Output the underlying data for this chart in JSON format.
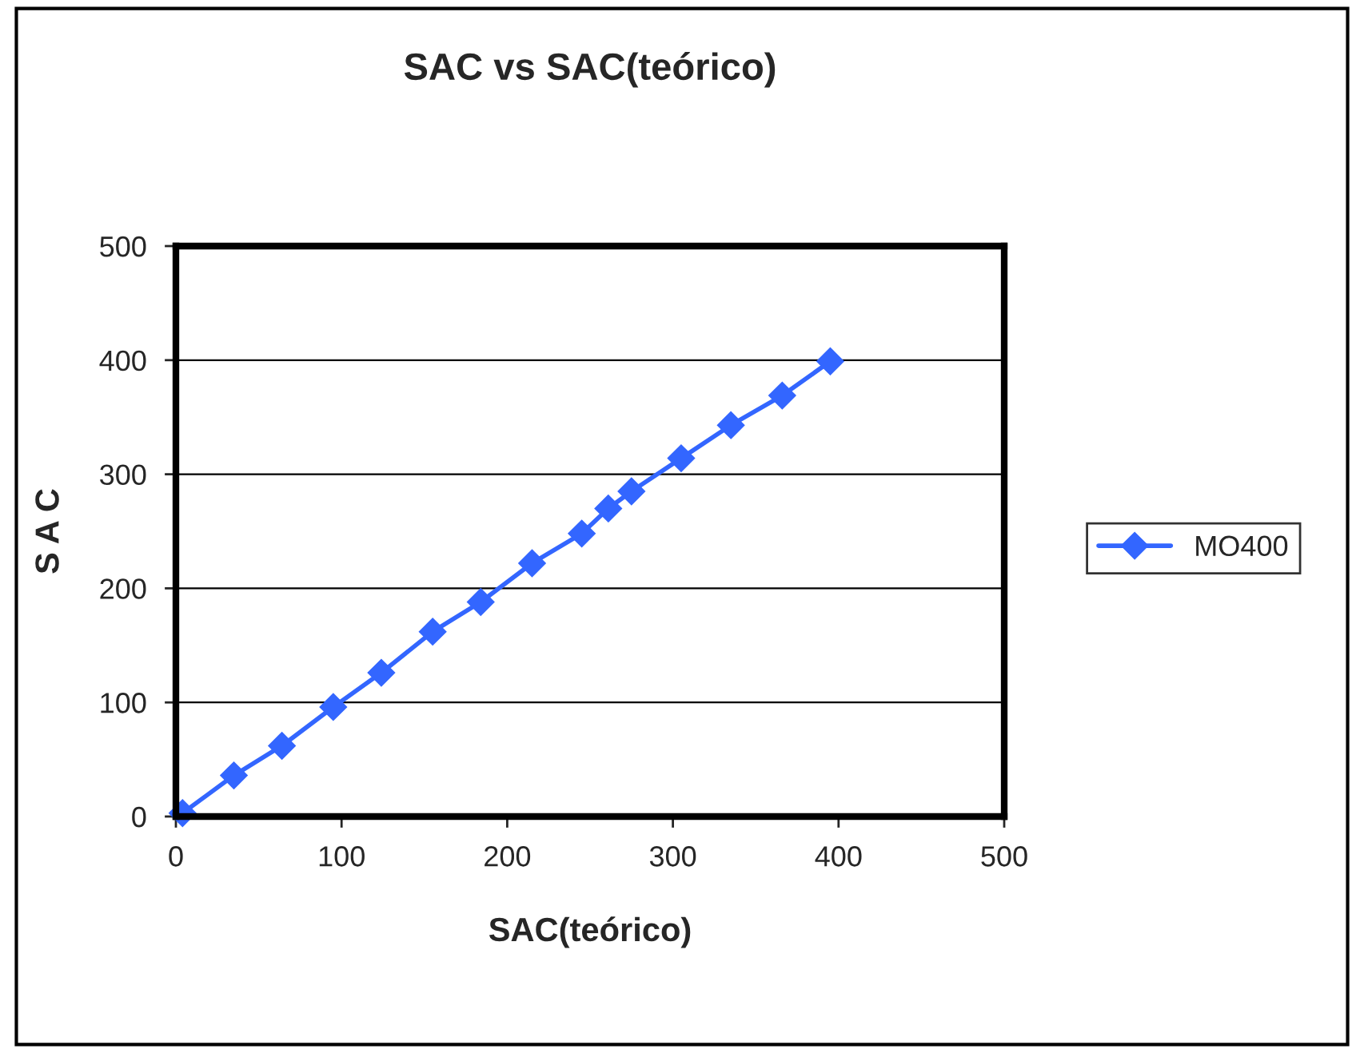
{
  "chart_data": {
    "type": "line",
    "title": "SAC vs SAC(teórico)",
    "xlabel": "SAC(teórico)",
    "ylabel": "S A C",
    "x": [
      4,
      35,
      64,
      95,
      124,
      155,
      184,
      215,
      245,
      261,
      275,
      305,
      335,
      366,
      395
    ],
    "series": [
      {
        "name": "MO400",
        "color": "#3366ff",
        "values": [
          3,
          36,
          62,
          96,
          126,
          162,
          188,
          222,
          248,
          270,
          285,
          314,
          343,
          369,
          399
        ]
      }
    ],
    "xlim": [
      0,
      500
    ],
    "ylim": [
      0,
      500
    ],
    "xticks": [
      0,
      100,
      200,
      300,
      400,
      500
    ],
    "yticks": [
      0,
      100,
      200,
      300,
      400,
      500
    ],
    "grid": "y",
    "legend": "right",
    "marker": "diamond",
    "line_style": "solid"
  }
}
